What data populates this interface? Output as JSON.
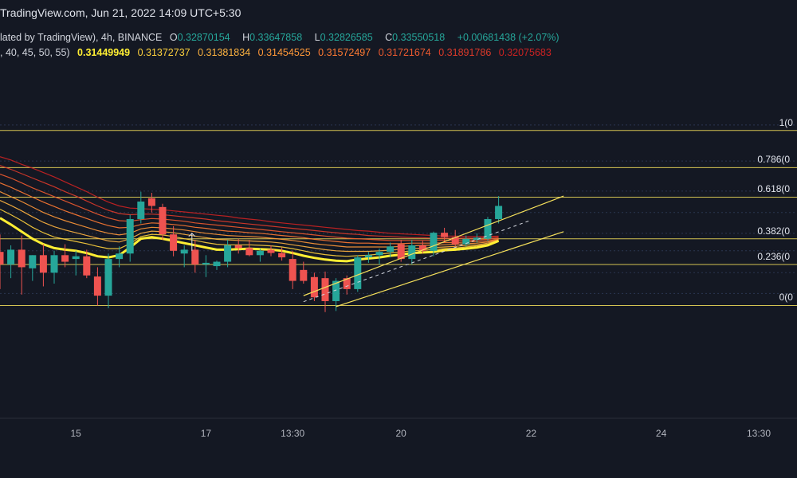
{
  "header": {
    "source_line": "TradingView.com, Jun 21, 2022 14:09 UTC+5:30",
    "symbol_line": "lated by TradingView), 4h, BINANCE",
    "ohlc": {
      "open_label": "O",
      "open": "0.32870154",
      "high_label": "H",
      "high": "0.33647858",
      "low_label": "L",
      "low": "0.32826585",
      "close_label": "C",
      "close": "0.33550518",
      "change": "+0.00681438 (+2.07%)"
    },
    "ema_line_prefix": ", 40, 45, 50, 55)",
    "ema_values": [
      "0.31449949",
      "0.31372737",
      "0.31381834",
      "0.31454525",
      "0.31572497",
      "0.31721674",
      "0.31891786",
      "0.32075683"
    ]
  },
  "colors": {
    "background": "#141823",
    "up": "#26a69a",
    "down": "#ef5350",
    "fib": "#f5e05b",
    "ema_main": "#ffee33",
    "ema_palette": [
      "#ffee33",
      "#ffd23d",
      "#ffb440",
      "#ff9838",
      "#ff7a33",
      "#ee5a2f",
      "#dd3a2a",
      "#cc2222"
    ],
    "channel": "#f5e05b"
  },
  "chart_data": {
    "type": "candlestick",
    "ylim": [
      0.2924,
      0.355
    ],
    "x_axis_labels": [
      {
        "label": "15",
        "index": 7
      },
      {
        "label": "17",
        "index": 19
      },
      {
        "label": "13:30",
        "index": 27
      },
      {
        "label": "20",
        "index": 37
      },
      {
        "label": "22",
        "index": 49
      },
      {
        "label": "24",
        "index": 61
      },
      {
        "label": "13:30",
        "index": 70
      }
    ],
    "fib_levels": [
      {
        "label": "1(0",
        "value": 0.345
      },
      {
        "label": "0.786(0",
        "value": 0.3382
      },
      {
        "label": "0.618(0",
        "value": 0.3328
      },
      {
        "label": "0.382(0",
        "value": 0.3252
      },
      {
        "label": "0.236(0",
        "value": 0.3205
      },
      {
        "label": "0(0",
        "value": 0.313
      }
    ],
    "candles": [
      {
        "o": 0.3228,
        "h": 0.326,
        "l": 0.316,
        "c": 0.3205
      },
      {
        "o": 0.3205,
        "h": 0.324,
        "l": 0.318,
        "c": 0.3232
      },
      {
        "o": 0.3232,
        "h": 0.3258,
        "l": 0.315,
        "c": 0.32
      },
      {
        "o": 0.3198,
        "h": 0.3222,
        "l": 0.3175,
        "c": 0.3222
      },
      {
        "o": 0.3222,
        "h": 0.3242,
        "l": 0.3165,
        "c": 0.319
      },
      {
        "o": 0.319,
        "h": 0.323,
        "l": 0.317,
        "c": 0.3222
      },
      {
        "o": 0.3222,
        "h": 0.3242,
        "l": 0.32,
        "c": 0.321
      },
      {
        "o": 0.3215,
        "h": 0.323,
        "l": 0.3185,
        "c": 0.322
      },
      {
        "o": 0.322,
        "h": 0.3232,
        "l": 0.318,
        "c": 0.3185
      },
      {
        "o": 0.3183,
        "h": 0.32,
        "l": 0.313,
        "c": 0.3148
      },
      {
        "o": 0.3148,
        "h": 0.3225,
        "l": 0.3125,
        "c": 0.3215
      },
      {
        "o": 0.3215,
        "h": 0.3238,
        "l": 0.32,
        "c": 0.3225
      },
      {
        "o": 0.3225,
        "h": 0.3296,
        "l": 0.321,
        "c": 0.3288
      },
      {
        "o": 0.3288,
        "h": 0.3338,
        "l": 0.328,
        "c": 0.332
      },
      {
        "o": 0.3326,
        "h": 0.3336,
        "l": 0.33,
        "c": 0.3312
      },
      {
        "o": 0.331,
        "h": 0.3316,
        "l": 0.325,
        "c": 0.326
      },
      {
        "o": 0.326,
        "h": 0.3275,
        "l": 0.322,
        "c": 0.323
      },
      {
        "o": 0.3225,
        "h": 0.324,
        "l": 0.32,
        "c": 0.3232
      },
      {
        "o": 0.3232,
        "h": 0.325,
        "l": 0.319,
        "c": 0.3205
      },
      {
        "o": 0.3205,
        "h": 0.3222,
        "l": 0.3182,
        "c": 0.3208
      },
      {
        "o": 0.3202,
        "h": 0.3212,
        "l": 0.3195,
        "c": 0.321
      },
      {
        "o": 0.321,
        "h": 0.325,
        "l": 0.32,
        "c": 0.324
      },
      {
        "o": 0.324,
        "h": 0.3252,
        "l": 0.3225,
        "c": 0.3235
      },
      {
        "o": 0.3235,
        "h": 0.325,
        "l": 0.322,
        "c": 0.3222
      },
      {
        "o": 0.3222,
        "h": 0.3234,
        "l": 0.321,
        "c": 0.323
      },
      {
        "o": 0.3232,
        "h": 0.324,
        "l": 0.322,
        "c": 0.3226
      },
      {
        "o": 0.3226,
        "h": 0.3236,
        "l": 0.3212,
        "c": 0.3218
      },
      {
        "o": 0.3215,
        "h": 0.323,
        "l": 0.316,
        "c": 0.3175
      },
      {
        "o": 0.3195,
        "h": 0.321,
        "l": 0.317,
        "c": 0.3175
      },
      {
        "o": 0.3182,
        "h": 0.319,
        "l": 0.3138,
        "c": 0.3145
      },
      {
        "o": 0.318,
        "h": 0.3192,
        "l": 0.3118,
        "c": 0.3138
      },
      {
        "o": 0.3138,
        "h": 0.318,
        "l": 0.312,
        "c": 0.3175
      },
      {
        "o": 0.318,
        "h": 0.3185,
        "l": 0.315,
        "c": 0.316
      },
      {
        "o": 0.316,
        "h": 0.3222,
        "l": 0.3155,
        "c": 0.3218
      },
      {
        "o": 0.3218,
        "h": 0.3228,
        "l": 0.3208,
        "c": 0.3222
      },
      {
        "o": 0.3222,
        "h": 0.3234,
        "l": 0.3205,
        "c": 0.3228
      },
      {
        "o": 0.3228,
        "h": 0.3245,
        "l": 0.3218,
        "c": 0.3238
      },
      {
        "o": 0.3242,
        "h": 0.325,
        "l": 0.321,
        "c": 0.3215
      },
      {
        "o": 0.3215,
        "h": 0.325,
        "l": 0.3205,
        "c": 0.324
      },
      {
        "o": 0.324,
        "h": 0.3248,
        "l": 0.3225,
        "c": 0.323
      },
      {
        "o": 0.323,
        "h": 0.3265,
        "l": 0.322,
        "c": 0.3263
      },
      {
        "o": 0.3263,
        "h": 0.3272,
        "l": 0.3245,
        "c": 0.3255
      },
      {
        "o": 0.3255,
        "h": 0.3268,
        "l": 0.3238,
        "c": 0.3242
      },
      {
        "o": 0.3242,
        "h": 0.3258,
        "l": 0.3238,
        "c": 0.3252
      },
      {
        "o": 0.325,
        "h": 0.3262,
        "l": 0.3245,
        "c": 0.3254
      },
      {
        "o": 0.3252,
        "h": 0.3292,
        "l": 0.3248,
        "c": 0.3288
      },
      {
        "o": 0.3288,
        "h": 0.333,
        "l": 0.328,
        "c": 0.3312
      }
    ],
    "ema_series": [
      {
        "name": "EMA 20",
        "values": [
          0.329,
          0.3278,
          0.3265,
          0.3252,
          0.3242,
          0.3235,
          0.3232,
          0.323,
          0.3226,
          0.322,
          0.3218,
          0.3222,
          0.3236,
          0.3252,
          0.3255,
          0.3252,
          0.3248,
          0.3244,
          0.324,
          0.3236,
          0.3232,
          0.3232,
          0.3233,
          0.3234,
          0.3233,
          0.3232,
          0.323,
          0.3226,
          0.3221,
          0.3217,
          0.3214,
          0.3212,
          0.3211,
          0.3214,
          0.3216,
          0.3218,
          0.3221,
          0.3223,
          0.3226,
          0.3227,
          0.3228,
          0.3231,
          0.3232,
          0.3234,
          0.3236,
          0.324,
          0.3248
        ]
      },
      {
        "name": "EMA 25",
        "values": [
          0.3306,
          0.3296,
          0.3285,
          0.3273,
          0.3263,
          0.3255,
          0.3251,
          0.3247,
          0.3243,
          0.3238,
          0.3234,
          0.3234,
          0.3243,
          0.3256,
          0.326,
          0.3259,
          0.3256,
          0.3252,
          0.3249,
          0.3245,
          0.3242,
          0.3241,
          0.3241,
          0.3241,
          0.324,
          0.3239,
          0.3237,
          0.3234,
          0.323,
          0.3226,
          0.3223,
          0.3221,
          0.322,
          0.3221,
          0.3222,
          0.3224,
          0.3226,
          0.3228,
          0.323,
          0.3231,
          0.3232,
          0.3234,
          0.3235,
          0.3237,
          0.3239,
          0.3242,
          0.3248
        ]
      },
      {
        "name": "EMA 30",
        "values": [
          0.3322,
          0.3313,
          0.3303,
          0.3292,
          0.3282,
          0.3274,
          0.3268,
          0.3263,
          0.3258,
          0.3253,
          0.3248,
          0.3246,
          0.3252,
          0.3262,
          0.3266,
          0.3265,
          0.3263,
          0.326,
          0.3257,
          0.3254,
          0.3251,
          0.325,
          0.3249,
          0.3248,
          0.3247,
          0.3246,
          0.3244,
          0.3241,
          0.3238,
          0.3235,
          0.3232,
          0.323,
          0.3229,
          0.3229,
          0.3229,
          0.323,
          0.3231,
          0.3233,
          0.3234,
          0.3235,
          0.3236,
          0.3237,
          0.3238,
          0.324,
          0.3241,
          0.3244,
          0.3249
        ]
      },
      {
        "name": "EMA 35",
        "values": [
          0.3338,
          0.3329,
          0.332,
          0.331,
          0.33,
          0.3292,
          0.3285,
          0.3279,
          0.3273,
          0.3267,
          0.3262,
          0.3259,
          0.3262,
          0.327,
          0.3273,
          0.3272,
          0.327,
          0.3268,
          0.3265,
          0.3262,
          0.326,
          0.3258,
          0.3257,
          0.3256,
          0.3255,
          0.3253,
          0.3251,
          0.3249,
          0.3246,
          0.3243,
          0.3241,
          0.3239,
          0.3237,
          0.3237,
          0.3237,
          0.3237,
          0.3237,
          0.3238,
          0.3239,
          0.324,
          0.324,
          0.3241,
          0.3242,
          0.3243,
          0.3244,
          0.3246,
          0.325
        ]
      },
      {
        "name": "EMA 40",
        "values": [
          0.3354,
          0.3346,
          0.3337,
          0.3328,
          0.3319,
          0.3311,
          0.3303,
          0.3296,
          0.3289,
          0.3282,
          0.3276,
          0.3272,
          0.3273,
          0.3278,
          0.3281,
          0.328,
          0.3278,
          0.3276,
          0.3273,
          0.3271,
          0.3268,
          0.3266,
          0.3265,
          0.3263,
          0.3262,
          0.326,
          0.3258,
          0.3256,
          0.3254,
          0.3251,
          0.3249,
          0.3247,
          0.3245,
          0.3244,
          0.3244,
          0.3243,
          0.3243,
          0.3243,
          0.3244,
          0.3244,
          0.3244,
          0.3245,
          0.3245,
          0.3246,
          0.3247,
          0.3248,
          0.3251
        ]
      },
      {
        "name": "EMA 45",
        "values": [
          0.337,
          0.3363,
          0.3354,
          0.3345,
          0.3337,
          0.3329,
          0.3321,
          0.3313,
          0.3305,
          0.3297,
          0.329,
          0.3285,
          0.3284,
          0.3287,
          0.3289,
          0.3288,
          0.3286,
          0.3284,
          0.3281,
          0.3279,
          0.3277,
          0.3275,
          0.3273,
          0.3271,
          0.3269,
          0.3267,
          0.3265,
          0.3263,
          0.3261,
          0.3259,
          0.3257,
          0.3255,
          0.3253,
          0.3252,
          0.3251,
          0.325,
          0.3249,
          0.3249,
          0.3249,
          0.3249,
          0.3249,
          0.3249,
          0.3249,
          0.3249,
          0.325,
          0.3251,
          0.3253
        ]
      },
      {
        "name": "EMA 50",
        "values": [
          0.3386,
          0.3379,
          0.3371,
          0.3363,
          0.3355,
          0.3347,
          0.3338,
          0.333,
          0.3321,
          0.3312,
          0.3304,
          0.3298,
          0.3296,
          0.3297,
          0.3297,
          0.3296,
          0.3294,
          0.3292,
          0.329,
          0.3288,
          0.3285,
          0.3283,
          0.3281,
          0.3279,
          0.3277,
          0.3275,
          0.3273,
          0.3271,
          0.3269,
          0.3267,
          0.3265,
          0.3263,
          0.3261,
          0.326,
          0.3258,
          0.3257,
          0.3256,
          0.3255,
          0.3254,
          0.3254,
          0.3253,
          0.3253,
          0.3253,
          0.3253,
          0.3253,
          0.3254,
          0.3255
        ]
      },
      {
        "name": "EMA 55",
        "values": [
          0.3402,
          0.3396,
          0.3388,
          0.3381,
          0.3373,
          0.3365,
          0.3356,
          0.3347,
          0.3338,
          0.3328,
          0.3319,
          0.3312,
          0.3308,
          0.3307,
          0.3306,
          0.3305,
          0.3303,
          0.3301,
          0.3299,
          0.3297,
          0.3295,
          0.3293,
          0.329,
          0.3288,
          0.3286,
          0.3283,
          0.3281,
          0.3279,
          0.3277,
          0.3275,
          0.3273,
          0.3271,
          0.3269,
          0.3267,
          0.3266,
          0.3264,
          0.3262,
          0.3261,
          0.326,
          0.3259,
          0.3258,
          0.3257,
          0.3257,
          0.3256,
          0.3256,
          0.3256,
          0.3257
        ]
      }
    ],
    "channel": {
      "upper": [
        {
          "index": 28,
          "value": 0.3148
        },
        {
          "index": 52,
          "value": 0.333
        }
      ],
      "lower": [
        {
          "index": 31,
          "value": 0.3128
        },
        {
          "index": 52,
          "value": 0.3265
        }
      ],
      "mid_dashed": [
        {
          "index": 28,
          "value": 0.3137
        },
        {
          "index": 49,
          "value": 0.3286
        }
      ]
    }
  }
}
